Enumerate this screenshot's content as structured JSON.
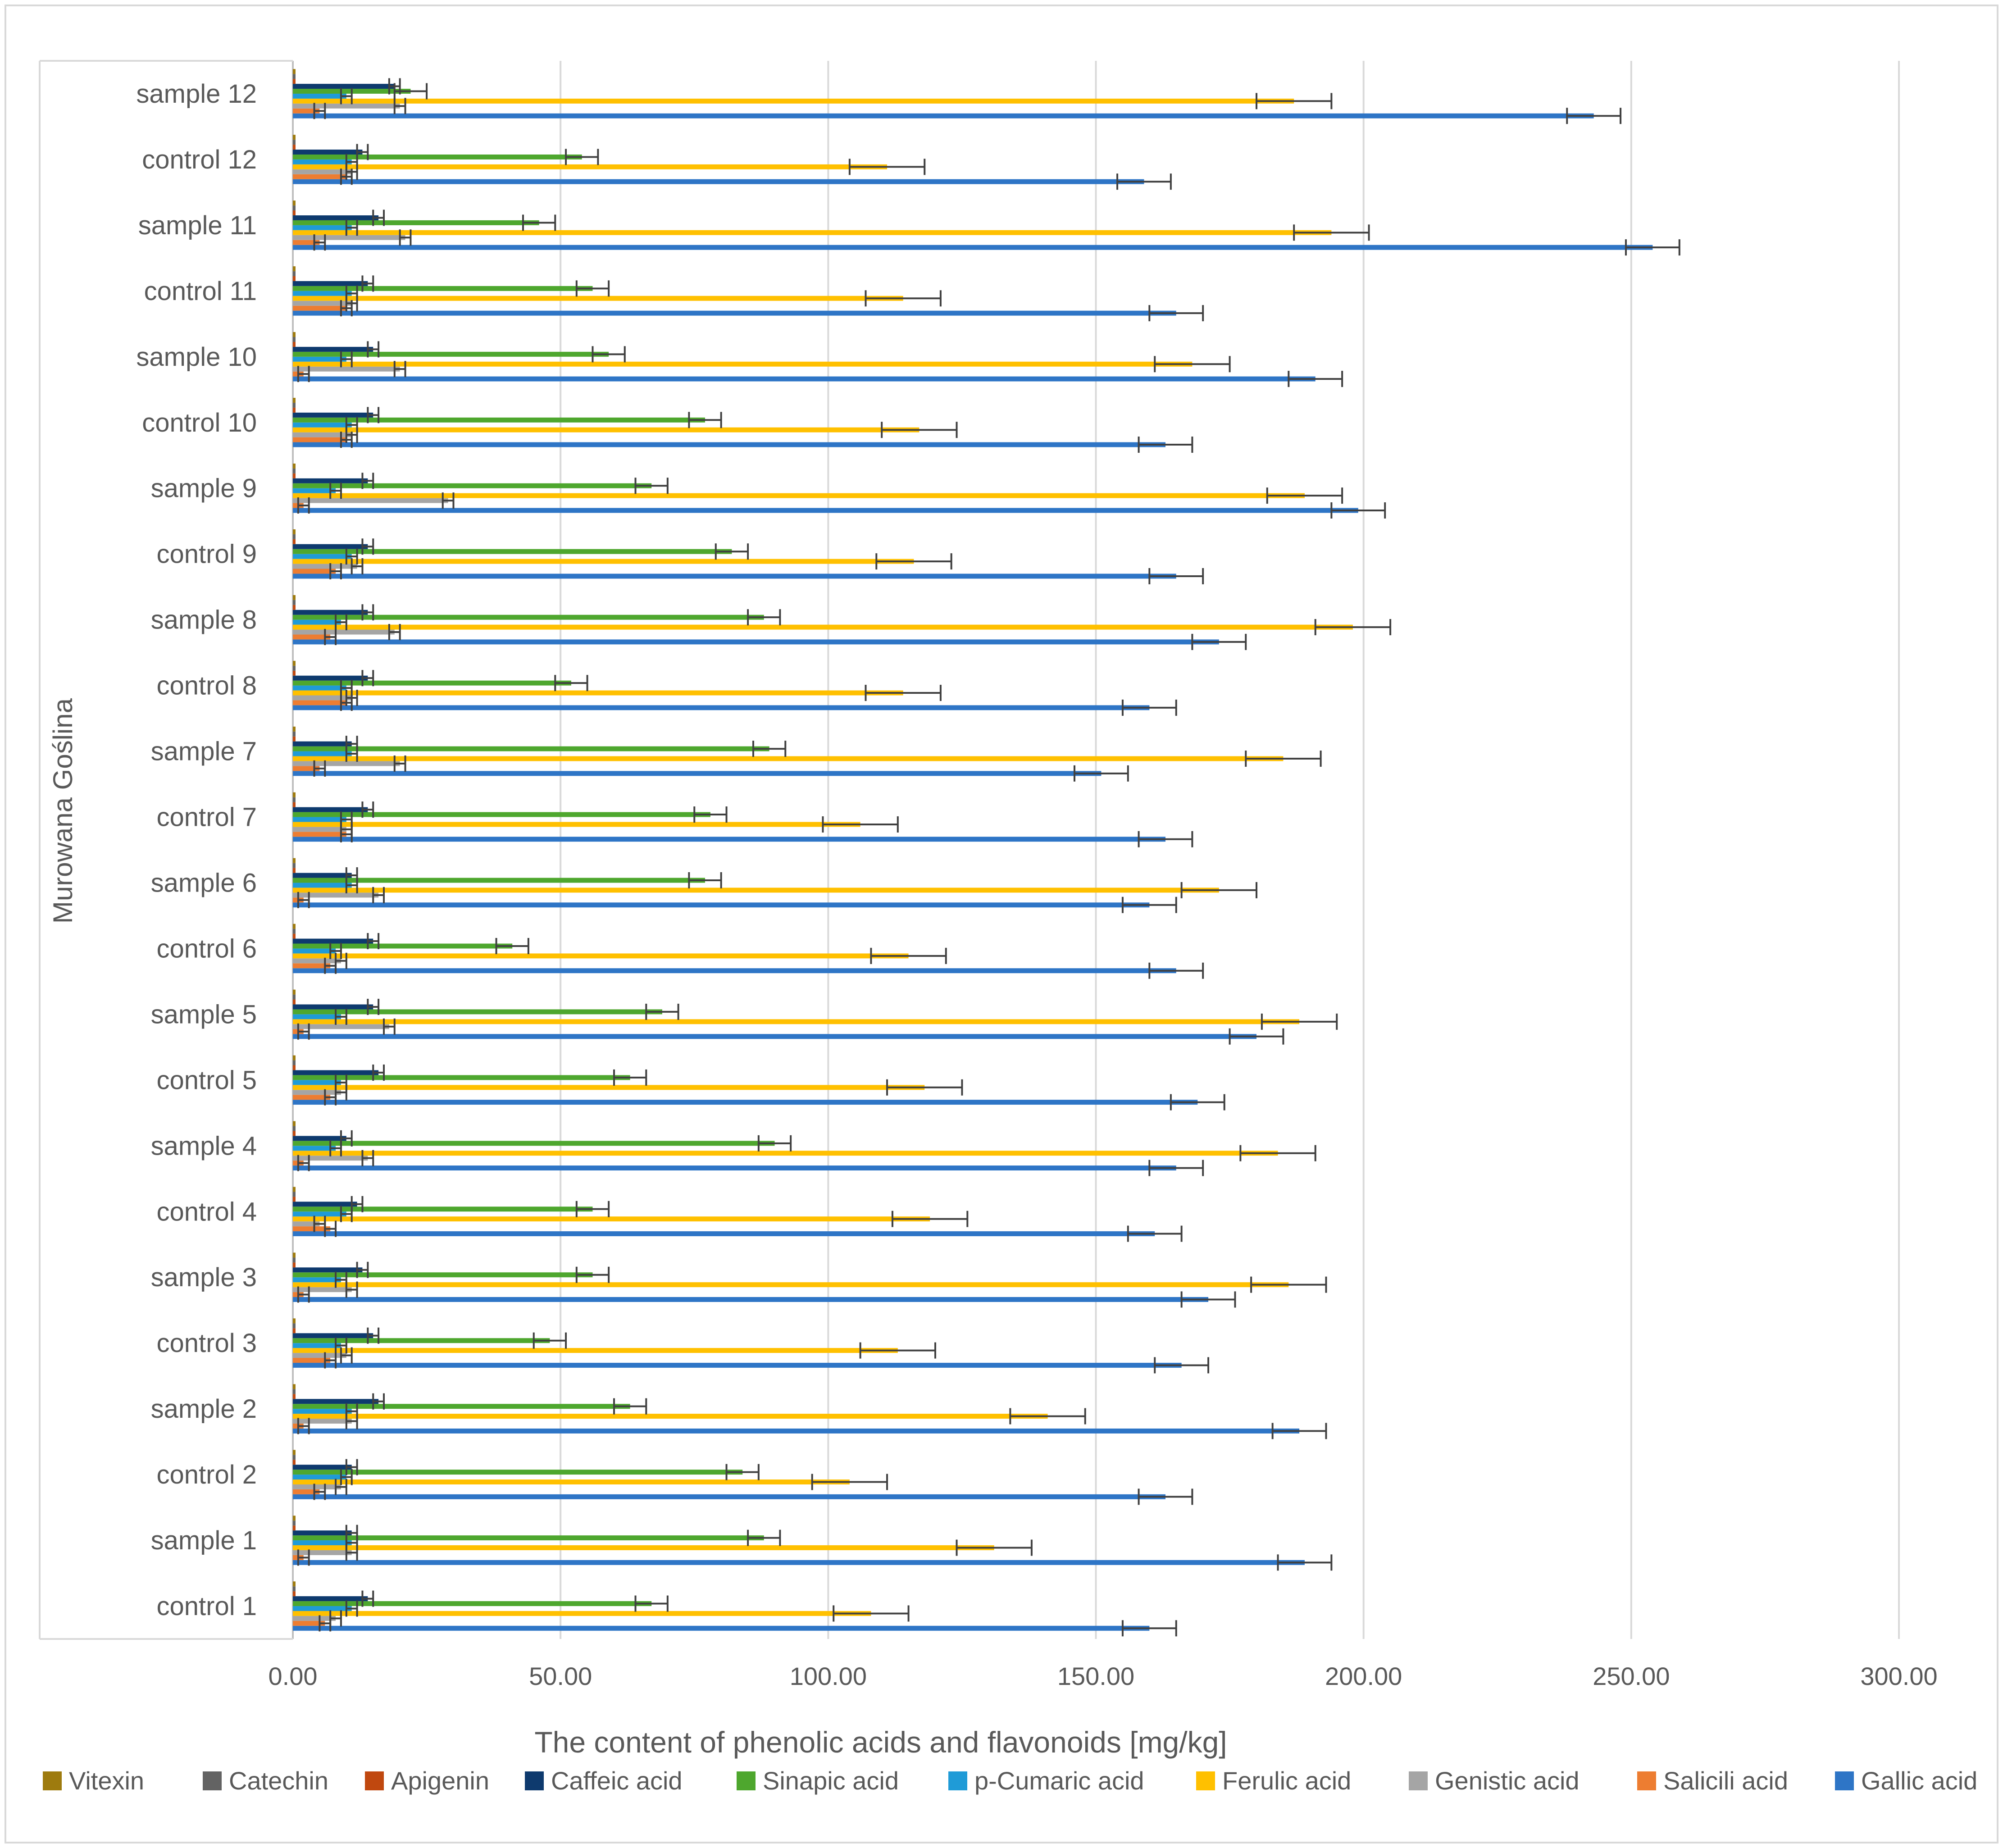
{
  "chart_data": {
    "type": "bar",
    "orientation": "horizontal",
    "title": "",
    "xlabel": "The content of phenolic acids and flavonoids [mg/kg]",
    "ylabel": "Murowana Goślina",
    "xlim": [
      0,
      300
    ],
    "xticks": [
      "0.00",
      "50.00",
      "100.00",
      "150.00",
      "200.00",
      "250.00",
      "300.00"
    ],
    "grid": "vertical",
    "legend_position": "bottom",
    "categories": [
      "control 1",
      "sample 1",
      "control 2",
      "sample 2",
      "control 3",
      "sample 3",
      "control 4",
      "sample 4",
      "control 5",
      "sample 5",
      "control 6",
      "sample 6",
      "control 7",
      "sample 7",
      "control 8",
      "sample 8",
      "control 9",
      "sample 9",
      "control 10",
      "sample 10",
      "control 11",
      "sample 11",
      "control 12",
      "sample 12"
    ],
    "series": [
      {
        "name": "Gallic acid",
        "color": "#2E75C6",
        "values": [
          160,
          189,
          163,
          188,
          166,
          171,
          161,
          165,
          169,
          180,
          165,
          160,
          163,
          151,
          160,
          173,
          165,
          199,
          163,
          191,
          165,
          254,
          159,
          243
        ],
        "errors": [
          5,
          5,
          5,
          5,
          5,
          5,
          5,
          5,
          5,
          5,
          5,
          5,
          5,
          5,
          5,
          5,
          5,
          5,
          5,
          5,
          5,
          5,
          5,
          5
        ]
      },
      {
        "name": "Salicili acid",
        "color": "#ED7D31",
        "values": [
          6,
          2,
          5,
          2,
          7,
          2,
          7,
          2,
          7,
          2,
          7,
          2,
          10,
          5,
          10,
          7,
          8,
          2,
          10,
          2,
          10,
          5,
          10,
          5
        ],
        "errors": [
          1,
          1,
          1,
          1,
          1,
          1,
          1,
          1,
          1,
          1,
          1,
          1,
          1,
          1,
          1,
          1,
          1,
          1,
          1,
          1,
          1,
          1,
          1,
          1
        ]
      },
      {
        "name": "Genistic acid",
        "color": "#A5A5A5",
        "values": [
          8,
          11,
          9,
          11,
          10,
          11,
          5,
          14,
          9,
          18,
          9,
          16,
          10,
          20,
          11,
          19,
          12,
          29,
          11,
          20,
          11,
          21,
          11,
          20
        ],
        "errors": [
          1,
          1,
          1,
          1,
          1,
          1,
          1,
          1,
          1,
          1,
          1,
          1,
          1,
          1,
          1,
          1,
          1,
          1,
          1,
          1,
          1,
          1,
          1,
          1
        ]
      },
      {
        "name": "Ferulic acid",
        "color": "#FFC000",
        "values": [
          108,
          131,
          104,
          141,
          113,
          186,
          119,
          184,
          118,
          188,
          115,
          173,
          106,
          185,
          114,
          198,
          116,
          189,
          117,
          168,
          114,
          194,
          111,
          187
        ],
        "errors": [
          7,
          7,
          7,
          7,
          7,
          7,
          7,
          7,
          7,
          7,
          7,
          7,
          7,
          7,
          7,
          7,
          7,
          7,
          7,
          7,
          7,
          7,
          7,
          7
        ]
      },
      {
        "name": "p-Cumaric acid",
        "color": "#1F9BD7",
        "values": [
          11,
          11,
          10,
          11,
          9,
          9,
          10,
          8,
          9,
          9,
          8,
          11,
          10,
          11,
          10,
          9,
          11,
          8,
          11,
          10,
          11,
          11,
          11,
          10
        ],
        "errors": [
          1,
          1,
          1,
          1,
          1,
          1,
          1,
          1,
          1,
          1,
          1,
          1,
          1,
          1,
          1,
          1,
          1,
          1,
          1,
          1,
          1,
          1,
          1,
          1
        ]
      },
      {
        "name": "Sinapic acid",
        "color": "#4EA72E",
        "values": [
          67,
          88,
          84,
          63,
          48,
          56,
          56,
          90,
          63,
          69,
          41,
          77,
          78,
          89,
          52,
          88,
          82,
          67,
          77,
          59,
          56,
          46,
          54,
          22
        ],
        "errors": [
          3,
          3,
          3,
          3,
          3,
          3,
          3,
          3,
          3,
          3,
          3,
          3,
          3,
          3,
          3,
          3,
          3,
          3,
          3,
          3,
          3,
          3,
          3,
          3
        ]
      },
      {
        "name": "Caffeic acid",
        "color": "#0E3A6E",
        "values": [
          14,
          11,
          11,
          16,
          15,
          13,
          12,
          10,
          16,
          15,
          15,
          11,
          14,
          11,
          14,
          14,
          14,
          14,
          15,
          15,
          14,
          16,
          13,
          19
        ],
        "errors": [
          1,
          1,
          1,
          1,
          1,
          1,
          1,
          1,
          1,
          1,
          1,
          1,
          1,
          1,
          1,
          1,
          1,
          1,
          1,
          1,
          1,
          1,
          1,
          1
        ]
      },
      {
        "name": "Apigenin",
        "color": "#C0480F",
        "values": [
          0.5,
          0.5,
          0.5,
          0.5,
          0.5,
          0.5,
          0.5,
          0.5,
          0.5,
          0.5,
          0.5,
          0.5,
          0.5,
          0.5,
          0.5,
          0.5,
          0.5,
          0.5,
          0.5,
          0.5,
          0.5,
          0.5,
          0.5,
          0.5
        ],
        "errors": [
          0,
          0,
          0,
          0,
          0,
          0,
          0,
          0,
          0,
          0,
          0,
          0,
          0,
          0,
          0,
          0,
          0,
          0,
          0,
          0,
          0,
          0,
          0,
          0
        ]
      },
      {
        "name": "Catechin",
        "color": "#636363",
        "values": [
          0.5,
          0.5,
          0.5,
          0.5,
          0.5,
          0.5,
          0.5,
          0.5,
          0.5,
          0.5,
          0.5,
          0.5,
          0.5,
          0.5,
          0.5,
          0.5,
          0.5,
          0.5,
          0.5,
          0.5,
          0.5,
          0.5,
          0.5,
          0.5
        ],
        "errors": [
          0,
          0,
          0,
          0,
          0,
          0,
          0,
          0,
          0,
          0,
          0,
          0,
          0,
          0,
          0,
          0,
          0,
          0,
          0,
          0,
          0,
          0,
          0,
          0
        ]
      },
      {
        "name": "Vitexin",
        "color": "#9E7B0E",
        "values": [
          0.5,
          0.5,
          0.5,
          0.5,
          0.5,
          0.5,
          0.5,
          0.5,
          0.5,
          0.5,
          0.5,
          0.5,
          0.5,
          0.5,
          0.5,
          0.5,
          0.5,
          0.5,
          0.5,
          0.5,
          0.5,
          0.5,
          0.5,
          0.5
        ],
        "errors": [
          0,
          0,
          0,
          0,
          0,
          0,
          0,
          0,
          0,
          0,
          0,
          0,
          0,
          0,
          0,
          0,
          0,
          0,
          0,
          0,
          0,
          0,
          0,
          0
        ]
      }
    ],
    "legend_order": [
      "Vitexin",
      "Catechin",
      "Apigenin",
      "Caffeic acid",
      "Sinapic acid",
      "p-Cumaric acid",
      "Ferulic acid",
      "Genistic acid",
      "Salicili acid",
      "Gallic acid"
    ]
  }
}
